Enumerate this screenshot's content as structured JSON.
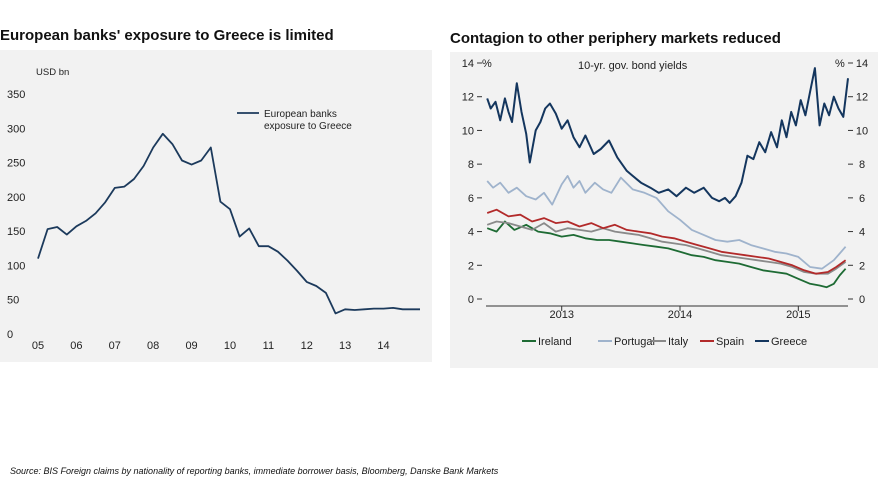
{
  "chart_data": [
    {
      "type": "line",
      "title": "European banks' exposure to Greece is limited",
      "ylabel": "USD bn",
      "ylim": [
        0,
        350
      ],
      "yticks": [
        0,
        50,
        100,
        150,
        200,
        250,
        300,
        350
      ],
      "xlim": [
        2005,
        2014.95
      ],
      "xticks": [
        {
          "label": "05",
          "value": 2005
        },
        {
          "label": "06",
          "value": 2006
        },
        {
          "label": "07",
          "value": 2007
        },
        {
          "label": "08",
          "value": 2008
        },
        {
          "label": "09",
          "value": 2009
        },
        {
          "label": "10",
          "value": 2010
        },
        {
          "label": "11",
          "value": 2011
        },
        {
          "label": "12",
          "value": 2012
        },
        {
          "label": "13",
          "value": 2013
        },
        {
          "label": "14",
          "value": 2014
        }
      ],
      "series": [
        {
          "name": "European banks exposure to Greece",
          "legend_lines": [
            "European banks",
            "exposure to Greece"
          ],
          "color": "#1c3a5c",
          "x": [
            2005.0,
            2005.25,
            2005.5,
            2005.75,
            2006.0,
            2006.25,
            2006.5,
            2006.75,
            2007.0,
            2007.25,
            2007.5,
            2007.75,
            2008.0,
            2008.25,
            2008.5,
            2008.75,
            2009.0,
            2009.25,
            2009.5,
            2009.75,
            2010.0,
            2010.25,
            2010.5,
            2010.75,
            2011.0,
            2011.25,
            2011.5,
            2011.75,
            2012.0,
            2012.25,
            2012.5,
            2012.75,
            2013.0,
            2013.25,
            2013.5,
            2013.75,
            2014.0,
            2014.25,
            2014.5,
            2014.75,
            2014.95
          ],
          "y": [
            110,
            153,
            156,
            145,
            157,
            165,
            176,
            192,
            213,
            215,
            226,
            245,
            272,
            292,
            277,
            253,
            247,
            253,
            272,
            193,
            182,
            142,
            154,
            128,
            128,
            120,
            107,
            92,
            76,
            70,
            60,
            30,
            36,
            35,
            36,
            37,
            37,
            38,
            36,
            36,
            36
          ]
        }
      ]
    },
    {
      "type": "line",
      "title": "Contagion to other periphery markets reduced",
      "subtitle": "10-yr. gov. bond yields",
      "ylabel_left": "%",
      "ylabel_right": "%",
      "ylim": [
        0,
        14
      ],
      "yticks": [
        0,
        2,
        4,
        6,
        8,
        10,
        12,
        14
      ],
      "xlim": [
        2012.36,
        2015.42
      ],
      "xticks": [
        {
          "label": "2013",
          "value": 2013.0
        },
        {
          "label": "2014",
          "value": 2014.0
        },
        {
          "label": "2015",
          "value": 2015.0
        }
      ],
      "series": [
        {
          "name": "Ireland",
          "color": "#1e6b34",
          "x": [
            2012.37,
            2012.45,
            2012.52,
            2012.6,
            2012.7,
            2012.8,
            2012.9,
            2013.0,
            2013.1,
            2013.2,
            2013.3,
            2013.4,
            2013.5,
            2013.6,
            2013.7,
            2013.8,
            2013.9,
            2014.0,
            2014.1,
            2014.2,
            2014.3,
            2014.4,
            2014.5,
            2014.6,
            2014.7,
            2014.8,
            2014.9,
            2015.0,
            2015.1,
            2015.18,
            2015.24,
            2015.3,
            2015.35,
            2015.4
          ],
          "y": [
            4.2,
            4.0,
            4.6,
            4.1,
            4.4,
            4.0,
            3.9,
            3.7,
            3.8,
            3.6,
            3.5,
            3.5,
            3.4,
            3.3,
            3.2,
            3.1,
            3.0,
            2.8,
            2.6,
            2.5,
            2.3,
            2.2,
            2.1,
            1.9,
            1.7,
            1.6,
            1.5,
            1.2,
            0.9,
            0.8,
            0.7,
            0.9,
            1.4,
            1.8
          ]
        },
        {
          "name": "Portugal",
          "color": "#9fb3cc",
          "x": [
            2012.37,
            2012.42,
            2012.48,
            2012.55,
            2012.62,
            2012.7,
            2012.78,
            2012.85,
            2012.92,
            2013.0,
            2013.05,
            2013.1,
            2013.15,
            2013.2,
            2013.28,
            2013.35,
            2013.42,
            2013.5,
            2013.6,
            2013.7,
            2013.8,
            2013.9,
            2014.0,
            2014.1,
            2014.2,
            2014.3,
            2014.4,
            2014.5,
            2014.6,
            2014.7,
            2014.8,
            2014.9,
            2015.0,
            2015.1,
            2015.2,
            2015.3,
            2015.35,
            2015.4
          ],
          "y": [
            7.0,
            6.6,
            6.9,
            6.3,
            6.6,
            6.1,
            5.9,
            6.3,
            5.6,
            6.8,
            7.3,
            6.6,
            7.0,
            6.3,
            6.9,
            6.5,
            6.3,
            7.2,
            6.5,
            6.3,
            6.0,
            5.2,
            4.7,
            4.1,
            3.8,
            3.5,
            3.4,
            3.5,
            3.2,
            3.0,
            2.8,
            2.7,
            2.5,
            1.9,
            1.8,
            2.3,
            2.7,
            3.1
          ]
        },
        {
          "name": "Italy",
          "color": "#8a8a8a",
          "x": [
            2012.37,
            2012.45,
            2012.55,
            2012.65,
            2012.75,
            2012.85,
            2012.95,
            2013.05,
            2013.15,
            2013.25,
            2013.35,
            2013.45,
            2013.55,
            2013.65,
            2013.75,
            2013.85,
            2013.95,
            2014.05,
            2014.15,
            2014.25,
            2014.35,
            2014.45,
            2014.55,
            2014.65,
            2014.75,
            2014.85,
            2014.95,
            2015.05,
            2015.15,
            2015.25,
            2015.32,
            2015.4
          ],
          "y": [
            4.4,
            4.6,
            4.5,
            4.3,
            4.1,
            4.5,
            4.0,
            4.2,
            4.1,
            4.0,
            4.2,
            4.0,
            3.9,
            3.8,
            3.6,
            3.4,
            3.3,
            3.2,
            3.0,
            2.8,
            2.6,
            2.5,
            2.4,
            2.3,
            2.2,
            2.1,
            1.9,
            1.6,
            1.5,
            1.5,
            1.8,
            2.2
          ]
        },
        {
          "name": "Spain",
          "color": "#b22a2a",
          "x": [
            2012.37,
            2012.45,
            2012.55,
            2012.65,
            2012.75,
            2012.85,
            2012.95,
            2013.05,
            2013.15,
            2013.25,
            2013.35,
            2013.45,
            2013.55,
            2013.65,
            2013.75,
            2013.85,
            2013.95,
            2014.05,
            2014.15,
            2014.25,
            2014.35,
            2014.45,
            2014.55,
            2014.65,
            2014.75,
            2014.85,
            2014.95,
            2015.05,
            2015.15,
            2015.25,
            2015.32,
            2015.4
          ],
          "y": [
            5.1,
            5.3,
            4.9,
            5.0,
            4.6,
            4.8,
            4.5,
            4.6,
            4.3,
            4.5,
            4.2,
            4.4,
            4.1,
            4.0,
            3.9,
            3.7,
            3.6,
            3.4,
            3.2,
            3.0,
            2.8,
            2.7,
            2.6,
            2.5,
            2.4,
            2.2,
            2.0,
            1.7,
            1.5,
            1.6,
            1.9,
            2.3
          ]
        },
        {
          "name": "Greece",
          "color": "#14365e",
          "x": [
            2012.37,
            2012.4,
            2012.44,
            2012.48,
            2012.52,
            2012.55,
            2012.58,
            2012.62,
            2012.66,
            2012.7,
            2012.73,
            2012.78,
            2012.82,
            2012.86,
            2012.9,
            2012.95,
            2013.0,
            2013.05,
            2013.1,
            2013.15,
            2013.2,
            2013.27,
            2013.33,
            2013.4,
            2013.47,
            2013.55,
            2013.6,
            2013.67,
            2013.75,
            2013.82,
            2013.9,
            2013.97,
            2014.05,
            2014.12,
            2014.2,
            2014.27,
            2014.33,
            2014.38,
            2014.42,
            2014.47,
            2014.52,
            2014.57,
            2014.62,
            2014.67,
            2014.72,
            2014.77,
            2014.82,
            2014.86,
            2014.9,
            2014.94,
            2014.98,
            2015.02,
            2015.06,
            2015.1,
            2015.14,
            2015.18,
            2015.22,
            2015.26,
            2015.3,
            2015.34,
            2015.38,
            2015.42
          ],
          "y": [
            11.9,
            11.3,
            11.7,
            10.6,
            11.9,
            11.1,
            10.5,
            12.8,
            11.1,
            9.8,
            8.1,
            10.0,
            10.5,
            11.3,
            11.6,
            11.0,
            10.1,
            10.6,
            9.6,
            9.0,
            9.7,
            8.6,
            8.9,
            9.4,
            8.4,
            7.6,
            7.3,
            6.9,
            6.6,
            6.3,
            6.5,
            6.1,
            6.6,
            6.3,
            6.6,
            6.0,
            5.8,
            6.0,
            5.7,
            6.1,
            6.9,
            8.5,
            8.3,
            9.3,
            8.7,
            9.9,
            9.0,
            10.6,
            9.6,
            11.1,
            10.3,
            11.8,
            10.9,
            12.3,
            13.7,
            10.3,
            11.6,
            10.9,
            12.0,
            11.3,
            10.8,
            13.1
          ]
        }
      ]
    }
  ],
  "source": "Source: BIS Foreign claims by nationality of reporting banks, immediate borrower basis, Bloomberg, Danske Bank Markets"
}
